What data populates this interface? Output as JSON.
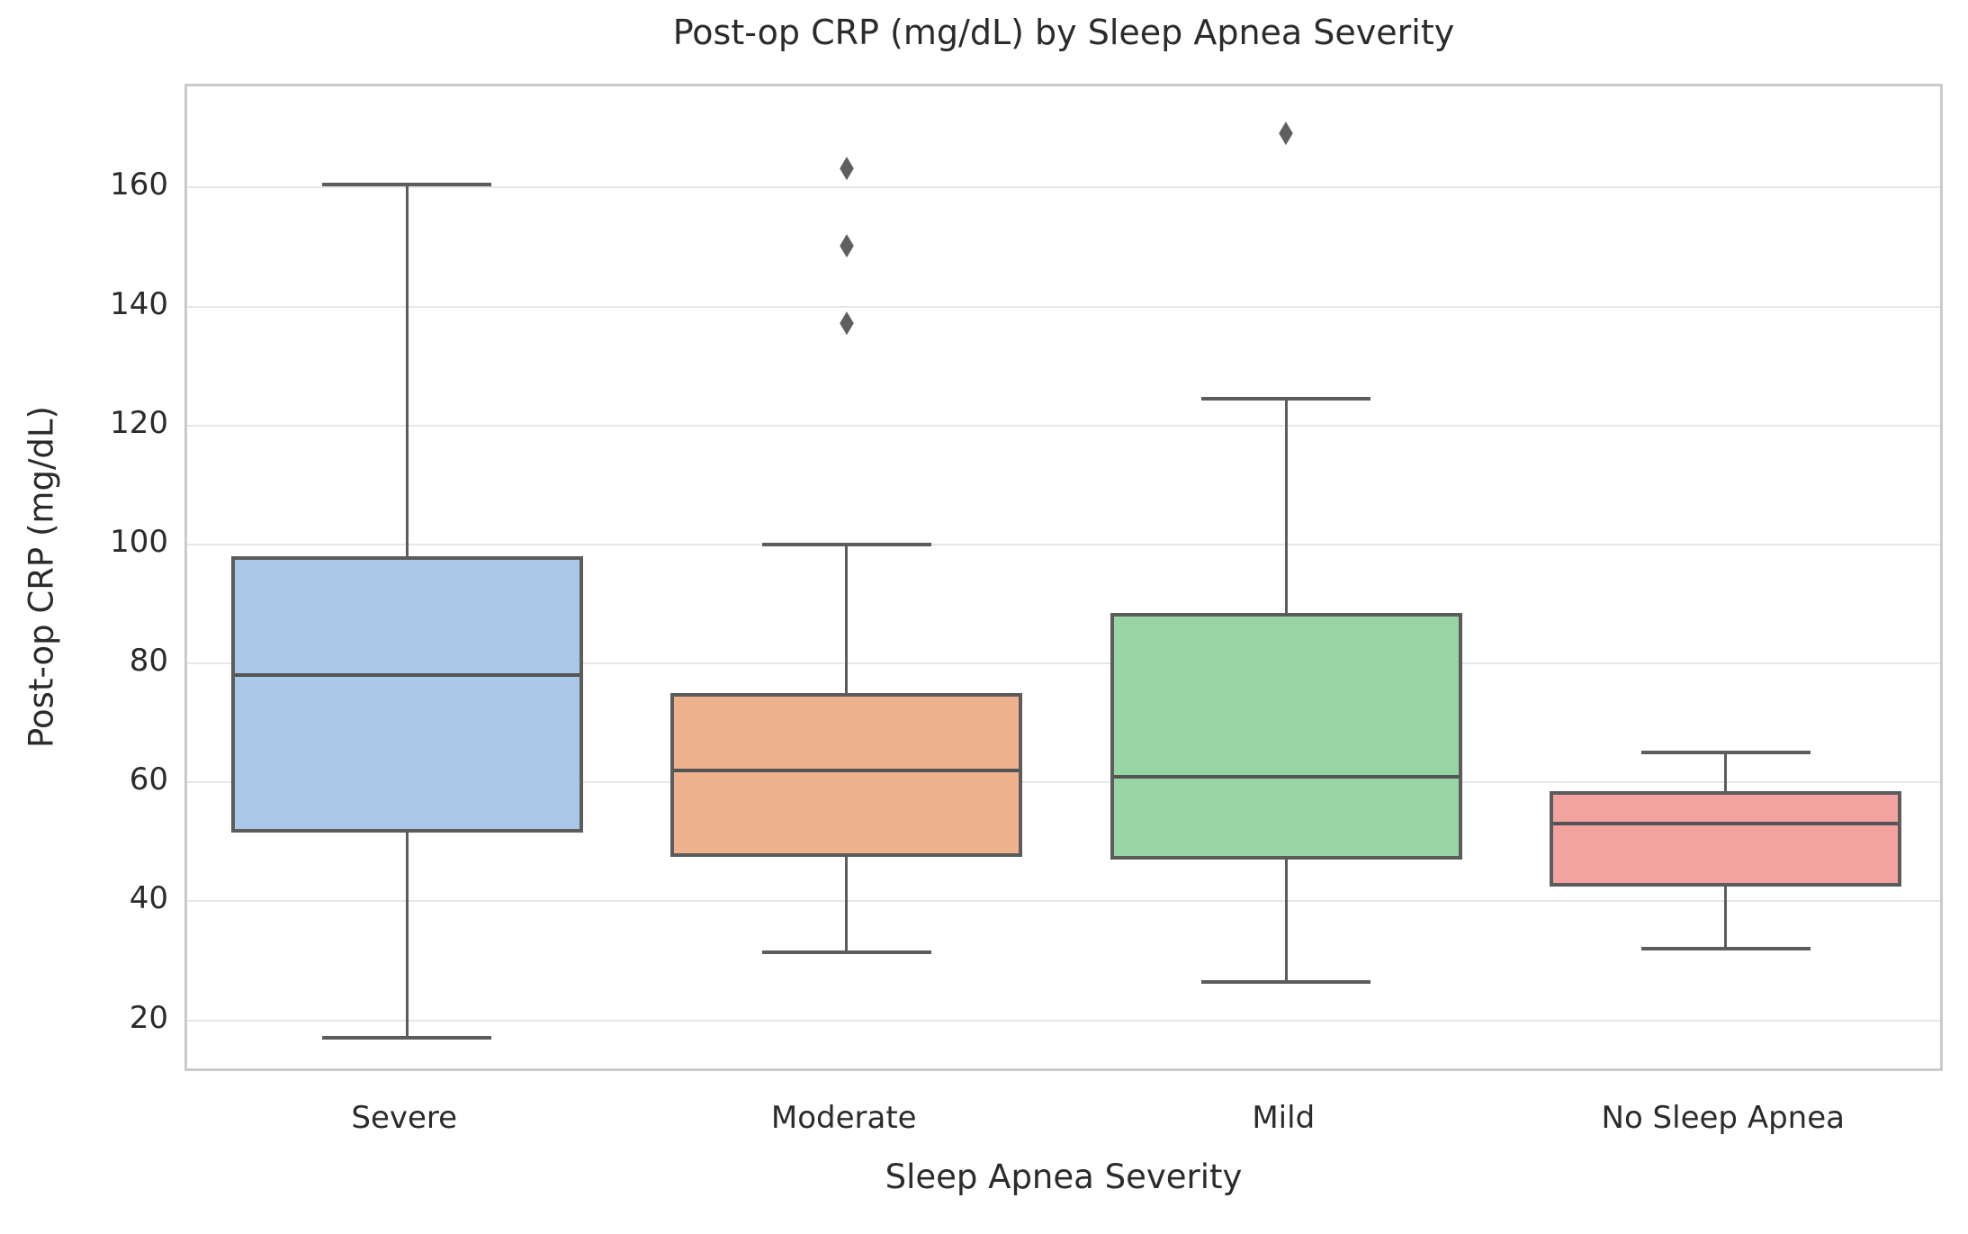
{
  "chart_data": {
    "type": "box",
    "title": "Post-op CRP (mg/dL) by Sleep Apnea Severity",
    "xlabel": "Sleep Apnea Severity",
    "ylabel": "Post-op CRP (mg/dL)",
    "categories": [
      "Severe",
      "Moderate",
      "Mild",
      "No Sleep Apnea"
    ],
    "y_ticks": [
      20,
      40,
      60,
      80,
      100,
      120,
      140,
      160
    ],
    "ylim": [
      11,
      177
    ],
    "grid": "horizontal",
    "legend": "none",
    "series": [
      {
        "category": "Severe",
        "whisker_low": 17,
        "q1": 51.5,
        "median": 78,
        "q3": 98,
        "whisker_high": 160.5,
        "outliers": [],
        "fill": "#a9c8e8"
      },
      {
        "category": "Moderate",
        "whisker_low": 31.5,
        "q1": 47.5,
        "median": 62,
        "q3": 75,
        "whisker_high": 100,
        "outliers": [
          137.5,
          150.5,
          163.5
        ],
        "fill": "#efb28e"
      },
      {
        "category": "Mild",
        "whisker_low": 26.5,
        "q1": 47,
        "median": 61,
        "q3": 88.5,
        "whisker_high": 124.5,
        "outliers": [
          169.5
        ],
        "fill": "#97d5a4"
      },
      {
        "category": "No Sleep Apnea",
        "whisker_low": 32,
        "q1": 42.5,
        "median": 53,
        "q3": 58.5,
        "whisker_high": 65,
        "outliers": [],
        "fill": "#f2a3a0"
      }
    ],
    "colors": {
      "box_border": "#5c5c5c",
      "median": "#545454",
      "whisker": "#5c5c5c",
      "outlier_marker": "#5f5f5f",
      "gridline": "#e7e7e7",
      "spine": "#cbcbcb",
      "text": "#2b2b2b",
      "background": "#ffffff"
    },
    "outlier_marker_glyph": "◆"
  }
}
